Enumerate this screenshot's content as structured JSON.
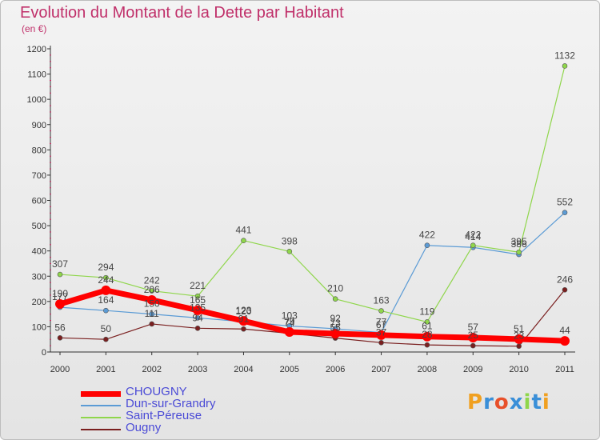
{
  "page": {
    "title": "Evolution du Montant de la Dette par Habitant",
    "unit": "(en €)",
    "logo": "Proxiti"
  },
  "chart_data": {
    "type": "line",
    "title": "Evolution du Montant de la Dette par Habitant",
    "subtitle": "(en €)",
    "xlabel": "",
    "ylabel": "",
    "x": [
      "2000",
      "2001",
      "2002",
      "2003",
      "2004",
      "2005",
      "2006",
      "2007",
      "2008",
      "2009",
      "2010",
      "2011"
    ],
    "ylim": [
      0,
      1200
    ],
    "yticks": [
      "0",
      "100",
      "200",
      "300",
      "400",
      "500",
      "600",
      "700",
      "800",
      "900",
      "1000",
      "1100",
      "1200"
    ],
    "grid": false,
    "legend": "bottom-left",
    "series": [
      {
        "name": "CHOUGNY",
        "color": "#ff0000",
        "values": [
          190,
          244,
          206,
          165,
          123,
          79,
          73,
          67,
          61,
          57,
          51,
          44
        ]
      },
      {
        "name": "Dun-sur-Grandry",
        "color": "#5b9bd5",
        "values": [
          177,
          164,
          150,
          135,
          120,
          103,
          92,
          77,
          422,
          414,
          386,
          552
        ]
      },
      {
        "name": "Saint-Péreuse",
        "color": "#8fd64b",
        "values": [
          307,
          294,
          242,
          221,
          441,
          398,
          210,
          163,
          119,
          422,
          395,
          1132
        ]
      },
      {
        "name": "Ougny",
        "color": "#7a1f1f",
        "values": [
          56,
          50,
          111,
          94,
          91,
          74,
          55,
          37,
          28,
          25,
          23,
          246
        ]
      }
    ]
  }
}
